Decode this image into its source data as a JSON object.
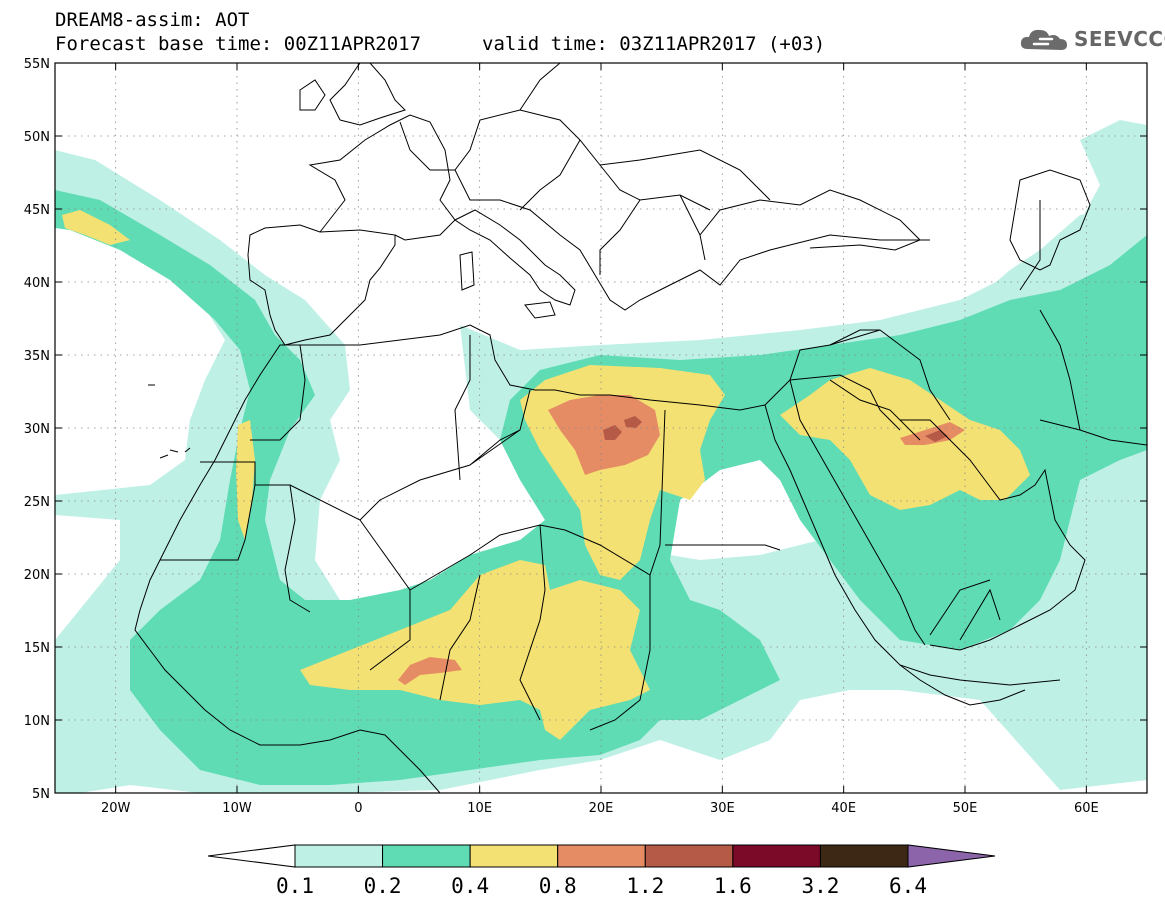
{
  "header": {
    "line1": "DREAM8-assim: AOT",
    "line2": "Forecast base time: 00Z11APR2017",
    "valid": "valid time: 03Z11APR2017 (+03)"
  },
  "logo": {
    "text": "SEEVCCC",
    "icon": "cloud-icon"
  },
  "map": {
    "lon_range": [
      -25,
      65
    ],
    "lat_range": [
      5,
      55
    ],
    "lon_ticks": [
      {
        "lon": -20,
        "label": "20W"
      },
      {
        "lon": -10,
        "label": "10W"
      },
      {
        "lon": 0,
        "label": "0"
      },
      {
        "lon": 10,
        "label": "10E"
      },
      {
        "lon": 20,
        "label": "20E"
      },
      {
        "lon": 30,
        "label": "30E"
      },
      {
        "lon": 40,
        "label": "40E"
      },
      {
        "lon": 50,
        "label": "50E"
      },
      {
        "lon": 60,
        "label": "60E"
      }
    ],
    "lat_ticks": [
      {
        "lat": 55,
        "label": "55N"
      },
      {
        "lat": 50,
        "label": "50N"
      },
      {
        "lat": 45,
        "label": "45N"
      },
      {
        "lat": 40,
        "label": "40N"
      },
      {
        "lat": 35,
        "label": "35N"
      },
      {
        "lat": 30,
        "label": "30N"
      },
      {
        "lat": 25,
        "label": "25N"
      },
      {
        "lat": 20,
        "label": "20N"
      },
      {
        "lat": 15,
        "label": "15N"
      },
      {
        "lat": 10,
        "label": "10N"
      },
      {
        "lat": 5,
        "label": "5N"
      }
    ],
    "grid": true
  },
  "colorbar": {
    "labels": [
      "0.1",
      "0.2",
      "0.4",
      "0.8",
      "1.2",
      "1.6",
      "3.2",
      "6.4"
    ],
    "colors": [
      "#bff0e6",
      "#5fdcb4",
      "#f4e173",
      "#e68c64",
      "#b45a46",
      "#7a0a28",
      "#3c2814",
      "#8c64aa"
    ]
  }
}
